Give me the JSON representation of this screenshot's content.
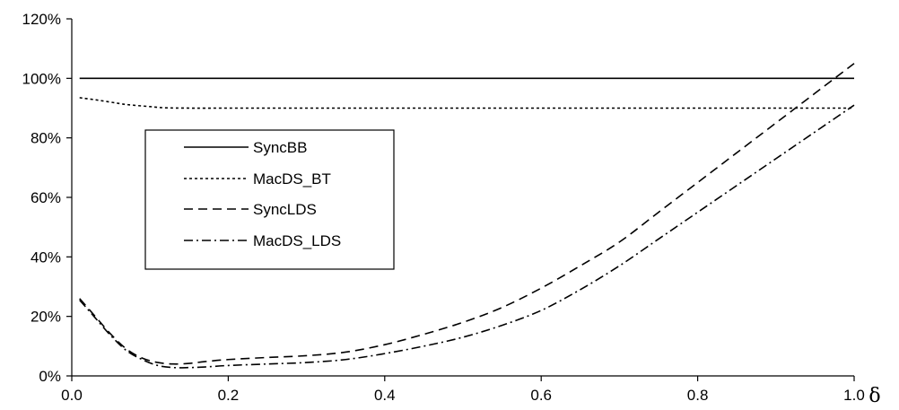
{
  "chart_data": {
    "type": "line",
    "title": "",
    "xlabel": "δ",
    "ylabel": "",
    "xlim": [
      0.0,
      1.0
    ],
    "ylim": [
      0,
      120
    ],
    "grid": false,
    "legend_position": "upper-left",
    "x_ticks": [
      "0.0",
      "0.2",
      "0.4",
      "0.6",
      "0.8",
      "1.0"
    ],
    "y_ticks": [
      "0%",
      "20%",
      "40%",
      "60%",
      "80%",
      "100%",
      "120%"
    ],
    "series": [
      {
        "name": "SyncBB",
        "style": "solid",
        "x": [
          0.01,
          1.0
        ],
        "y": [
          100,
          100
        ]
      },
      {
        "name": "MacDS_BT",
        "style": "dotted",
        "x": [
          0.01,
          0.03,
          0.05,
          0.07,
          0.1,
          0.12,
          0.15,
          0.2,
          0.3,
          0.4,
          0.5,
          0.6,
          0.7,
          0.8,
          0.9,
          1.0
        ],
        "y": [
          93.5,
          92.8,
          92.0,
          91.2,
          90.5,
          90.1,
          90.0,
          90.0,
          90.0,
          90.0,
          90.0,
          90.0,
          90.0,
          90.0,
          90.0,
          90.0
        ]
      },
      {
        "name": "SyncLDS",
        "style": "dashed",
        "x": [
          0.01,
          0.03,
          0.05,
          0.07,
          0.09,
          0.11,
          0.13,
          0.15,
          0.17,
          0.2,
          0.25,
          0.3,
          0.35,
          0.4,
          0.45,
          0.5,
          0.55,
          0.6,
          0.65,
          0.7,
          0.75,
          0.8,
          0.85,
          0.9,
          0.95,
          1.0
        ],
        "y": [
          26,
          20,
          14,
          9,
          6,
          4.5,
          4.0,
          4.2,
          4.8,
          5.5,
          6.2,
          6.8,
          8.0,
          10.5,
          14,
          18,
          23,
          29.5,
          37,
          45,
          55,
          65,
          75,
          85,
          95,
          105
        ]
      },
      {
        "name": "MacDS_LDS",
        "style": "dashdot",
        "x": [
          0.01,
          0.03,
          0.05,
          0.07,
          0.09,
          0.11,
          0.13,
          0.15,
          0.17,
          0.2,
          0.25,
          0.3,
          0.35,
          0.4,
          0.45,
          0.5,
          0.55,
          0.6,
          0.65,
          0.7,
          0.75,
          0.8,
          0.85,
          0.9,
          0.95,
          1.0
        ],
        "y": [
          25.5,
          19.5,
          13.5,
          8.5,
          5.5,
          3.5,
          2.8,
          2.8,
          3.0,
          3.5,
          4.0,
          4.5,
          5.5,
          7.5,
          10,
          13,
          17,
          22,
          29,
          37,
          46,
          55,
          64,
          73,
          82,
          91
        ]
      }
    ]
  }
}
